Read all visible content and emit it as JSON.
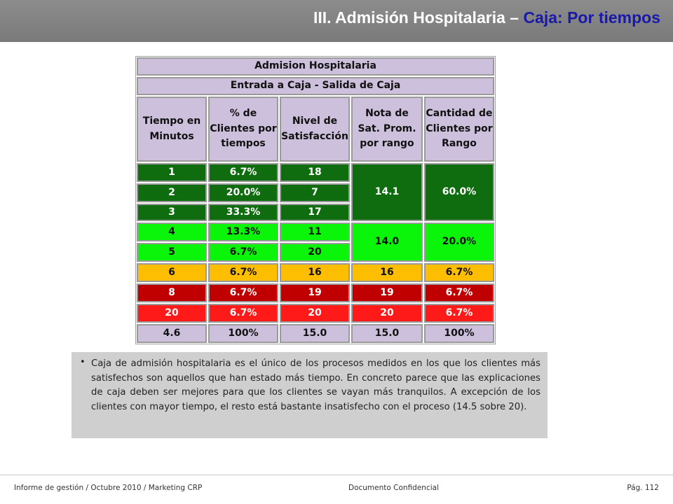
{
  "header": {
    "title_main": "III. Admisión Hospitalaria – ",
    "title_accent": "Caja: Por tiempos"
  },
  "table": {
    "title": "Admision Hospitalaria",
    "subtitle": "Entrada a  Caja  - Salida de Caja",
    "columns": [
      "Tiempo en Minutos",
      "% de Clientes por tiempos",
      "Nivel de Satisfacción",
      "Nota de Sat. Prom. por rango",
      "Cantidad de Clientes por Rango"
    ],
    "rows": [
      {
        "tiempo": "1",
        "pct": "6.7%",
        "nivel": "18"
      },
      {
        "tiempo": "2",
        "pct": "20.0%",
        "nivel": "7"
      },
      {
        "tiempo": "3",
        "pct": "33.3%",
        "nivel": "17"
      },
      {
        "tiempo": "4",
        "pct": "13.3%",
        "nivel": "11"
      },
      {
        "tiempo": "5",
        "pct": "6.7%",
        "nivel": "20"
      },
      {
        "tiempo": "6",
        "pct": "6.7%",
        "nivel": "16"
      },
      {
        "tiempo": "8",
        "pct": "6.7%",
        "nivel": "19"
      },
      {
        "tiempo": "20",
        "pct": "6.7%",
        "nivel": "20"
      }
    ],
    "groups": [
      {
        "nota": "14.1",
        "cantidad": "60.0%"
      },
      {
        "nota": "14.0",
        "cantidad": "20.0%"
      },
      {
        "nota": "16",
        "cantidad": "6.7%"
      },
      {
        "nota": "19",
        "cantidad": "6.7%"
      },
      {
        "nota": "20",
        "cantidad": "6.7%"
      }
    ],
    "totals": {
      "tiempo": "4.6",
      "pct": "100%",
      "nivel": "15.0",
      "nota": "15.0",
      "cantidad": "100%"
    },
    "colors": {
      "header": "#cdc0dd",
      "dark_green": "#0f6d0f",
      "light_green": "#0af50a",
      "yellow": "#fdbd00",
      "dark_red": "#c00000",
      "red": "#ff1a1a"
    }
  },
  "note": {
    "bullet": "•",
    "text": "Caja de admisión hospitalaria es el único de los procesos medidos en los que los clientes más satisfechos son aquellos que han estado más tiempo. En concreto parece que las explicaciones de caja deben ser mejores para que los clientes se vayan más tranquilos. A excepción de los clientes con mayor tiempo, el resto está bastante insatisfecho con el proceso (14.5 sobre 20)."
  },
  "footer": {
    "left": "Informe de gestión / Octubre 2010 / Marketing CRP",
    "center": "Documento Confidencial",
    "right": "Pág. 112"
  }
}
